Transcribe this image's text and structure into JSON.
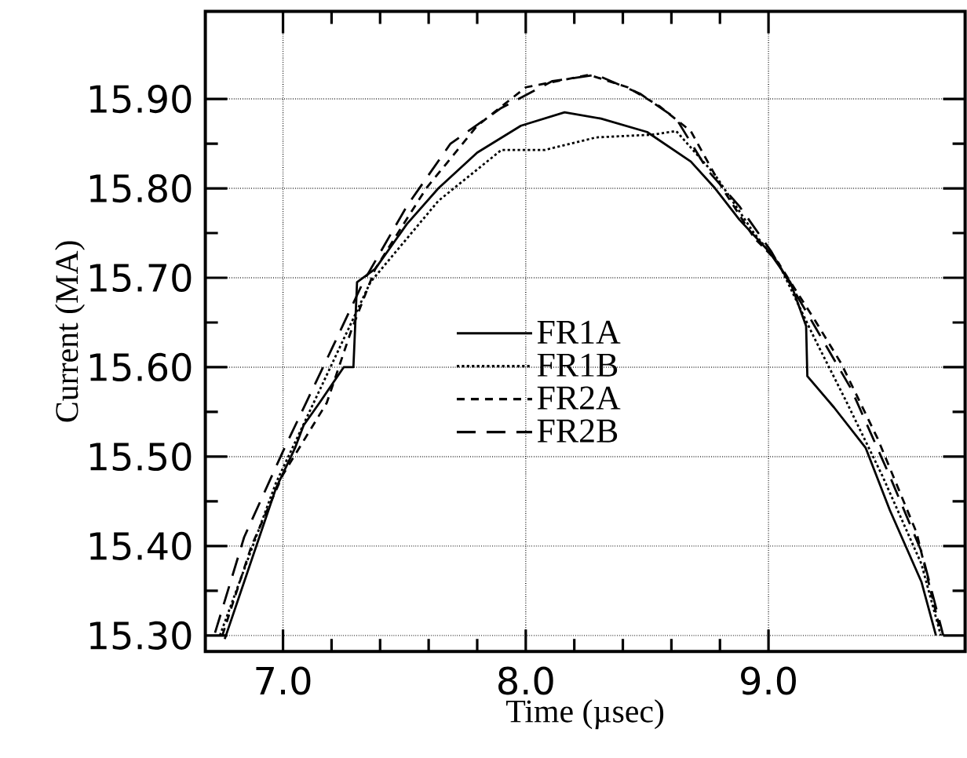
{
  "chart_data": {
    "type": "line",
    "xlabel": "Time (µsec)",
    "ylabel": "Current (MA)",
    "xlim": [
      6.68,
      9.81
    ],
    "ylim": [
      15.282,
      15.998
    ],
    "xticks": [
      {
        "value": 7.0,
        "label": "7.0"
      },
      {
        "value": 8.0,
        "label": "8.0"
      },
      {
        "value": 9.0,
        "label": "9.0"
      }
    ],
    "yticks": [
      {
        "value": 15.3,
        "label": "15.30"
      },
      {
        "value": 15.4,
        "label": "15.40"
      },
      {
        "value": 15.5,
        "label": "15.50"
      },
      {
        "value": 15.6,
        "label": "15.60"
      },
      {
        "value": 15.7,
        "label": "15.70"
      },
      {
        "value": 15.8,
        "label": "15.80"
      },
      {
        "value": 15.9,
        "label": "15.90"
      }
    ],
    "grid": true,
    "legend": "center",
    "marker": "none",
    "series": [
      {
        "name": "FR1A",
        "color": "#000000",
        "line_style": "solid",
        "x": [
          6.76,
          6.97,
          7.05,
          7.085,
          7.15,
          7.25,
          7.29,
          7.305,
          7.38,
          7.51,
          7.64,
          7.8,
          7.98,
          8.16,
          8.31,
          8.5,
          8.68,
          8.78,
          8.88,
          9.0,
          9.09,
          9.155,
          9.16,
          9.27,
          9.4,
          9.5,
          9.63,
          9.69
        ],
        "values": [
          15.296,
          15.464,
          15.51,
          15.535,
          15.56,
          15.6,
          15.6,
          15.695,
          15.71,
          15.76,
          15.8,
          15.84,
          15.87,
          15.885,
          15.878,
          15.863,
          15.83,
          15.8,
          15.765,
          15.73,
          15.695,
          15.646,
          15.59,
          15.555,
          15.51,
          15.44,
          15.36,
          15.3
        ]
      },
      {
        "name": "FR1B",
        "color": "#000000",
        "line_style": "dotted",
        "x": [
          6.74,
          6.97,
          7.23,
          7.36,
          7.64,
          7.9,
          8.08,
          8.29,
          8.52,
          8.62,
          8.78,
          8.94,
          9.04,
          9.19,
          9.32,
          9.47,
          9.63,
          9.71
        ],
        "values": [
          15.3,
          15.47,
          15.62,
          15.695,
          15.786,
          15.843,
          15.843,
          15.857,
          15.86,
          15.864,
          15.815,
          15.75,
          15.717,
          15.632,
          15.562,
          15.478,
          15.38,
          15.3
        ]
      },
      {
        "name": "FR2A",
        "color": "#000000",
        "line_style": "dashed",
        "x": [
          6.75,
          6.87,
          7.0,
          7.18,
          7.28,
          7.38,
          7.59,
          7.8,
          8.0,
          8.26,
          8.42,
          8.55,
          8.68,
          8.81,
          8.94,
          9.04,
          9.19,
          9.3,
          9.45,
          9.61,
          9.71
        ],
        "values": [
          15.3,
          15.4,
          15.48,
          15.56,
          15.64,
          15.71,
          15.8,
          15.87,
          15.913,
          15.927,
          15.913,
          15.892,
          15.864,
          15.8,
          15.745,
          15.717,
          15.653,
          15.604,
          15.52,
          15.415,
          15.303
        ]
      },
      {
        "name": "FR2B",
        "color": "#000000",
        "line_style": "dashed",
        "x": [
          6.72,
          6.84,
          7.0,
          7.2,
          7.33,
          7.51,
          7.69,
          7.9,
          8.11,
          8.29,
          8.47,
          8.62,
          8.75,
          8.88,
          9.01,
          9.19,
          9.34,
          9.5,
          9.63,
          9.72
        ],
        "values": [
          15.303,
          15.41,
          15.506,
          15.62,
          15.695,
          15.78,
          15.85,
          15.89,
          15.92,
          15.927,
          15.906,
          15.878,
          15.82,
          15.78,
          15.73,
          15.646,
          15.576,
          15.478,
          15.394,
          15.3
        ]
      }
    ]
  }
}
